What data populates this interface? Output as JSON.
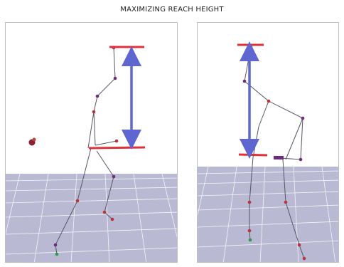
{
  "figure": {
    "title": "MAXIMIZING REACH HEIGHT"
  },
  "colors": {
    "floor": "#b9b9d4",
    "floor_grid": "#ffffff",
    "skeleton": "#555566",
    "joint": "#6b2d7a",
    "joint_red": "#b5353b",
    "joint_green": "#2f9a46",
    "reach_marker": "#e0303a",
    "reach_arrow": "#5f66d0",
    "panel_border": "#bfbfbf"
  },
  "panels": [
    {
      "name": "left-panel",
      "pose": "crouched-reach"
    },
    {
      "name": "right-panel",
      "pose": "leaning-reach"
    }
  ]
}
